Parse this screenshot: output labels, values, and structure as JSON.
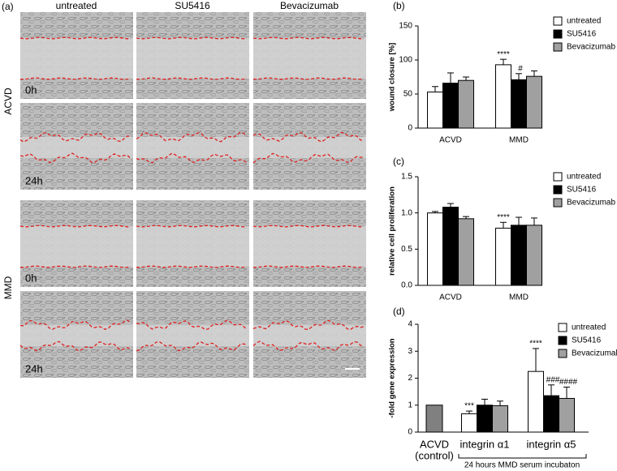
{
  "panel_a": {
    "label": "(a)",
    "columns": [
      "untreated",
      "SU5416",
      "Bevacizumab"
    ],
    "rows": [
      "ACVD",
      "MMD"
    ],
    "times": [
      "0h",
      "24h",
      "0h",
      "24h"
    ]
  },
  "chart_data": [
    {
      "type": "bar",
      "label": "(b)",
      "y_label": "wound closure [%]",
      "categories": [
        "ACVD",
        "MMD"
      ],
      "ylim": [
        0,
        150
      ],
      "yticks": [
        0,
        50,
        100,
        150
      ],
      "series": [
        {
          "name": "untreated",
          "color": "#ffffff",
          "values": [
            53,
            93
          ],
          "errors": [
            8,
            8
          ],
          "annotations": [
            null,
            "****"
          ]
        },
        {
          "name": "SU5416",
          "color": "#000000",
          "values": [
            66,
            71
          ],
          "errors": [
            15,
            9
          ],
          "annotations": [
            null,
            "#"
          ]
        },
        {
          "name": "Bevacizumab",
          "color": "#a0a0a0",
          "values": [
            70,
            76
          ],
          "errors": [
            5,
            8
          ],
          "annotations": [
            null,
            null
          ]
        }
      ]
    },
    {
      "type": "bar",
      "label": "(c)",
      "y_label": "relative cell proliferation",
      "categories": [
        "ACVD",
        "MMD"
      ],
      "ylim": [
        0,
        1.5
      ],
      "yticks": [
        {
          "value": 0,
          "label": "0.0"
        },
        {
          "value": 0.5,
          "label": "0.5"
        },
        {
          "value": 1,
          "label": "1.0"
        },
        {
          "value": 1.5,
          "label": "1.5"
        }
      ],
      "series": [
        {
          "name": "untreated",
          "color": "#ffffff",
          "values": [
            1.0,
            0.79
          ],
          "errors": [
            0.02,
            0.08
          ],
          "annotations": [
            null,
            "****"
          ]
        },
        {
          "name": "SU5416",
          "color": "#000000",
          "values": [
            1.08,
            0.83
          ],
          "errors": [
            0.05,
            0.11
          ],
          "annotations": [
            null,
            null
          ]
        },
        {
          "name": "Bevacizumab",
          "color": "#a0a0a0",
          "values": [
            0.92,
            0.83
          ],
          "errors": [
            0.03,
            0.1
          ],
          "annotations": [
            null,
            null
          ]
        }
      ]
    },
    {
      "type": "bar",
      "label": "(d)",
      "y_label": "-fold gene expression",
      "x_label": "24 hours MMD serum incubaton",
      "control": {
        "label": [
          "ACVD",
          "(control)"
        ],
        "value": 1,
        "color": "#808080"
      },
      "categories": [
        "integrin α1",
        "integrin α5"
      ],
      "ylim": [
        0,
        4
      ],
      "yticks": [
        0,
        1,
        2,
        3,
        4
      ],
      "series": [
        {
          "name": "untreated",
          "color": "#ffffff",
          "values": [
            0.68,
            2.25
          ],
          "errors": [
            0.1,
            0.85
          ],
          "annotations": [
            "***",
            "****"
          ]
        },
        {
          "name": "SU5416",
          "color": "#000000",
          "values": [
            1.0,
            1.35
          ],
          "errors": [
            0.22,
            0.4
          ],
          "annotations": [
            null,
            "###"
          ]
        },
        {
          "name": "Bevacizumab",
          "color": "#a0a0a0",
          "values": [
            0.98,
            1.25
          ],
          "errors": [
            0.17,
            0.42
          ],
          "annotations": [
            null,
            "####"
          ]
        }
      ]
    }
  ]
}
